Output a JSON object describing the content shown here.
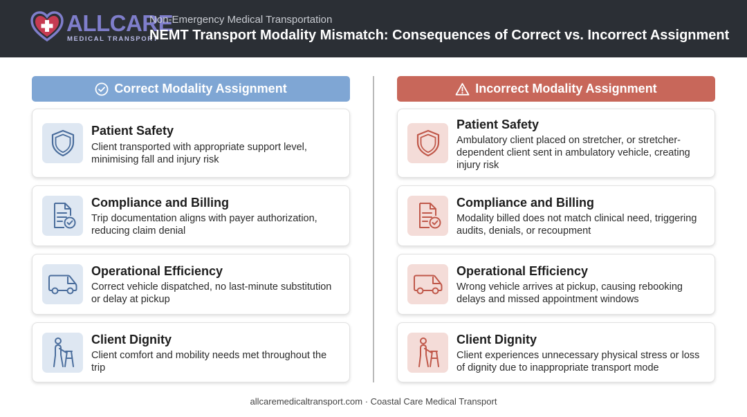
{
  "logo": {
    "word": "ALLCARE",
    "sub": "MEDICAL TRANSPORT"
  },
  "header": {
    "subtitle": "Non-Emergency Medical Transportation",
    "title": "NEMT Transport Modality Mismatch: Consequences of Correct vs. Incorrect Assignment"
  },
  "colors": {
    "header_bg": "#2b2f35",
    "correct_accent": "#7fa6d4",
    "incorrect_accent": "#c8675a",
    "correct_icon": "#4a6d9c",
    "incorrect_icon": "#c0584a"
  },
  "correct": {
    "heading": "Correct Modality Assignment",
    "heading_icon": "check-circle-icon",
    "cards": [
      {
        "icon": "shield-icon",
        "title": "Patient Safety",
        "desc": "Client transported with appropriate support level, minimising fall and injury risk"
      },
      {
        "icon": "document-check-icon",
        "title": "Compliance and Billing",
        "desc": "Trip documentation aligns with payer authorization, reducing claim denial"
      },
      {
        "icon": "van-icon",
        "title": "Operational Efficiency",
        "desc": "Correct vehicle dispatched, no last-minute substitution or delay at pickup"
      },
      {
        "icon": "walker-person-icon",
        "title": "Client Dignity",
        "desc": "Client comfort and mobility needs met throughout the trip"
      }
    ]
  },
  "incorrect": {
    "heading": "Incorrect Modality Assignment",
    "heading_icon": "warning-triangle-icon",
    "cards": [
      {
        "icon": "shield-icon",
        "title": "Patient Safety",
        "desc": "Ambulatory client placed on stretcher, or stretcher-dependent client sent in ambulatory vehicle, creating injury risk"
      },
      {
        "icon": "document-check-icon",
        "title": "Compliance and Billing",
        "desc": "Modality billed does not match clinical need, triggering audits, denials, or recoupment"
      },
      {
        "icon": "van-icon",
        "title": "Operational Efficiency",
        "desc": "Wrong vehicle arrives at pickup, causing rebooking delays and missed appointment windows"
      },
      {
        "icon": "walker-person-icon",
        "title": "Client Dignity",
        "desc": "Client experiences unnecessary physical stress or loss of dignity due to inappropriate transport mode"
      }
    ]
  },
  "footer": {
    "text": "allcaremedicaltransport.com · Coastal Care Medical Transport"
  }
}
